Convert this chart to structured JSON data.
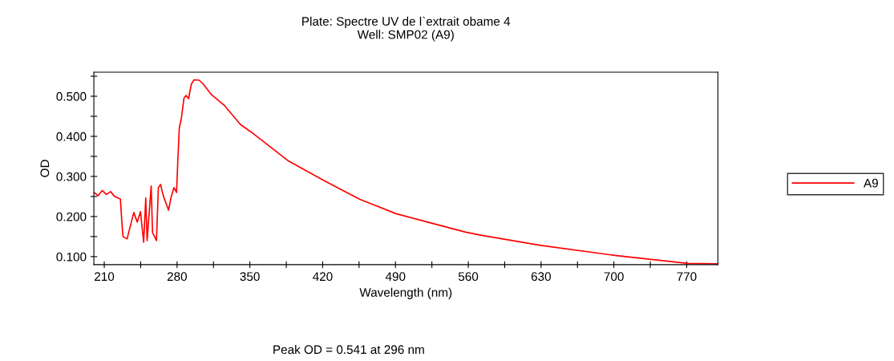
{
  "chart_data": {
    "type": "line",
    "title": "Plate: Spectre UV de l`extrait obame 4\nWell: SMP02 (A9)",
    "xlabel": "Wavelength (nm)",
    "ylabel": "OD",
    "xlim": [
      200,
      800
    ],
    "ylim": [
      0.08,
      0.56
    ],
    "xticks": [
      210,
      {
        "value": 245,
        "label": null
      },
      280,
      {
        "value": 315,
        "label": null
      },
      350,
      {
        "value": 385,
        "label": null
      },
      420,
      {
        "value": 455,
        "label": null
      },
      490,
      {
        "value": 525,
        "label": null
      },
      560,
      {
        "value": 595,
        "label": null
      },
      630,
      {
        "value": 665,
        "label": null
      },
      700,
      {
        "value": 735,
        "label": null
      },
      770
    ],
    "yticks": [
      {
        "value": 0.1,
        "label": "0.100"
      },
      {
        "value": 0.15,
        "label": null
      },
      {
        "value": 0.2,
        "label": "0.200"
      },
      {
        "value": 0.25,
        "label": null
      },
      {
        "value": 0.3,
        "label": "0.300"
      },
      {
        "value": 0.35,
        "label": null
      },
      {
        "value": 0.4,
        "label": "0.400"
      },
      {
        "value": 0.45,
        "label": null
      },
      {
        "value": 0.5,
        "label": "0.500"
      },
      {
        "value": 0.55,
        "label": null
      }
    ],
    "grid": false,
    "legend": "right",
    "marker": "none",
    "line_style": "solid",
    "series": [
      {
        "name": "A9",
        "color": "#ff0000",
        "x": [
          200.2,
          204,
          208,
          212,
          216,
          220,
          225.5,
          226.8,
          228,
          231.9,
          238.4,
          241.7,
          244.8,
          247.9,
          249.9,
          251.2,
          255.1,
          256.4,
          260.2,
          262,
          264.1,
          266.7,
          271.8,
          274.4,
          277,
          279.5,
          280.8,
          282.1,
          284.2,
          286.7,
          288.6,
          291.1,
          293.7,
          296.3,
          301.4,
          305.3,
          313,
          325.9,
          340.8,
          351.6,
          386.3,
          421.1,
          455.8,
          490.6,
          525.3,
          557.5,
          573,
          629.6,
          700.9,
          771.2,
          799.5
        ],
        "values": [
          0.26,
          0.252,
          0.265,
          0.255,
          0.262,
          0.25,
          0.244,
          0.19,
          0.15,
          0.144,
          0.21,
          0.186,
          0.212,
          0.136,
          0.246,
          0.14,
          0.276,
          0.16,
          0.14,
          0.272,
          0.28,
          0.252,
          0.216,
          0.25,
          0.272,
          0.26,
          0.344,
          0.42,
          0.446,
          0.496,
          0.502,
          0.494,
          0.53,
          0.541,
          0.54,
          0.53,
          0.504,
          0.476,
          0.43,
          0.41,
          0.34,
          0.29,
          0.243,
          0.207,
          0.183,
          0.161,
          0.153,
          0.128,
          0.103,
          0.083,
          0.082
        ]
      }
    ],
    "annotations": [
      "Peak OD = 0.541 at 296 nm"
    ]
  }
}
